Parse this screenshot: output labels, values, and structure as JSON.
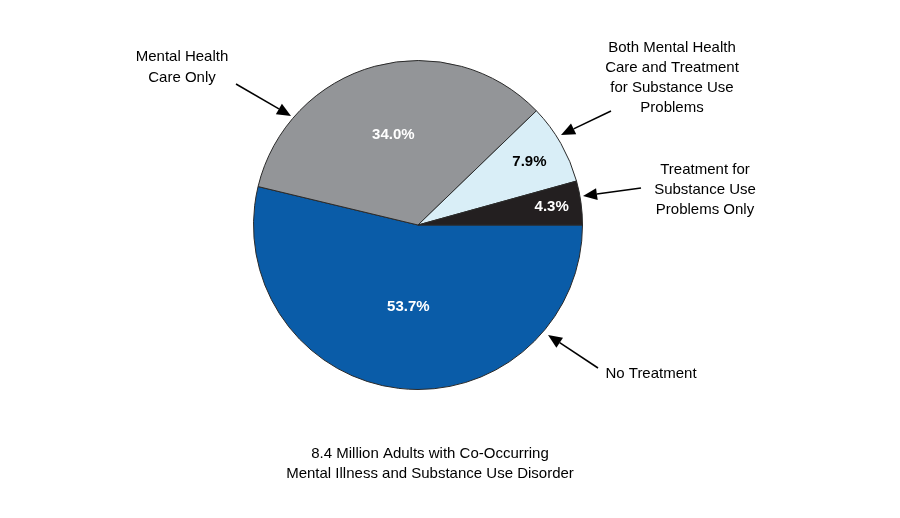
{
  "chart_data": {
    "type": "pie",
    "title": [
      "8.4 Million Adults with Co-Occurring",
      "Mental Illness and Substance Use Disorder"
    ],
    "categories": [
      "No Treatment",
      "Mental Health\nCare Only",
      "Both Mental Health\nCare and Treatment\nfor Substance Use\nProblems",
      "Treatment for\nSubstance Use\nProblems Only"
    ],
    "values": [
      53.7,
      34.0,
      7.9,
      4.3
    ],
    "value_labels": [
      "53.7%",
      "34.0%",
      "7.9%",
      "4.3%"
    ],
    "colors": [
      "#0a5ca8",
      "#939598",
      "#d9eef7",
      "#231f20"
    ],
    "data_labels": true,
    "legend": false
  }
}
